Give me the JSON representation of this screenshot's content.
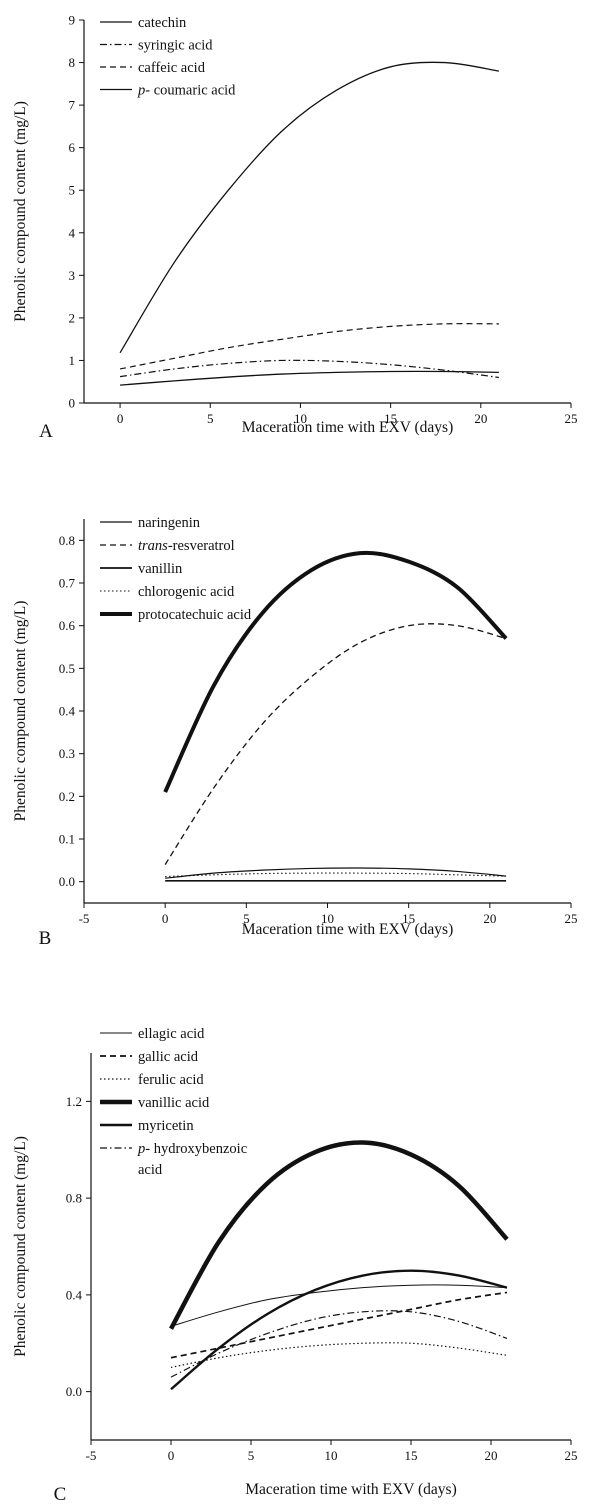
{
  "chart_data": [
    {
      "type": "line",
      "panel_label": "A",
      "xlabel": "Maceration time with EXV (days)",
      "ylabel": "Phenolic compound content (mg/L)",
      "xlim": [
        -2,
        25
      ],
      "ylim": [
        0,
        9
      ],
      "xticks": [
        "0",
        "5",
        "10",
        "15",
        "20",
        "25"
      ],
      "yticks": [
        "0",
        "1",
        "2",
        "3",
        "4",
        "5",
        "6",
        "7",
        "8",
        "9"
      ],
      "legend_position": "top-left",
      "x": [
        0,
        3,
        6,
        9,
        12,
        15,
        18,
        21
      ],
      "series": [
        {
          "name": "catechin",
          "style": "solid",
          "width": 1.3,
          "values": [
            1.18,
            3.3,
            5.0,
            6.4,
            7.35,
            7.9,
            8.0,
            7.8
          ]
        },
        {
          "name": "syringic acid",
          "style": "dashdot",
          "width": 1.2,
          "values": [
            0.62,
            0.8,
            0.93,
            1.0,
            0.98,
            0.9,
            0.77,
            0.6
          ]
        },
        {
          "name": "caffeic acid",
          "style": "dashed",
          "width": 1.2,
          "values": [
            0.8,
            1.05,
            1.3,
            1.5,
            1.68,
            1.8,
            1.86,
            1.86
          ]
        },
        {
          "name": "coumaric acid",
          "name_prefix": "p-",
          "style": "solid",
          "width": 1.3,
          "values": [
            0.42,
            0.52,
            0.61,
            0.68,
            0.72,
            0.74,
            0.74,
            0.72
          ]
        }
      ]
    },
    {
      "type": "line",
      "panel_label": "B",
      "xlabel": "Maceration time with EXV (days)",
      "ylabel": "Phenolic compound content (mg/L)",
      "xlim": [
        -5,
        25
      ],
      "ylim": [
        -0.05,
        0.85
      ],
      "xticks": [
        "-5",
        "0",
        "5",
        "10",
        "15",
        "20",
        "25"
      ],
      "yticks": [
        "0.0",
        "0.1",
        "0.2",
        "0.3",
        "0.4",
        "0.5",
        "0.6",
        "0.7",
        "0.8"
      ],
      "legend_position": "top-left",
      "x": [
        0,
        3,
        6,
        9,
        12,
        15,
        18,
        21
      ],
      "series": [
        {
          "name": "naringenin",
          "style": "solid",
          "width": 1.2,
          "values": [
            0.008,
            0.02,
            0.027,
            0.031,
            0.032,
            0.03,
            0.024,
            0.013
          ]
        },
        {
          "name": "resveratrol",
          "name_prefix": "trans-",
          "style": "dashed",
          "width": 1.3,
          "values": [
            0.04,
            0.22,
            0.37,
            0.48,
            0.56,
            0.6,
            0.6,
            0.57
          ]
        },
        {
          "name": "vanillin",
          "style": "solid",
          "width": 1.7,
          "values": [
            0.002,
            0.002,
            0.002,
            0.002,
            0.002,
            0.002,
            0.002,
            0.002
          ]
        },
        {
          "name": "chlorogenic acid",
          "style": "dotted",
          "width": 1.1,
          "values": [
            0.012,
            0.016,
            0.019,
            0.02,
            0.02,
            0.019,
            0.016,
            0.013
          ]
        },
        {
          "name": "protocatechuic acid",
          "style": "solid",
          "width": 4,
          "values": [
            0.21,
            0.46,
            0.63,
            0.73,
            0.77,
            0.75,
            0.69,
            0.57
          ]
        }
      ]
    },
    {
      "type": "line",
      "panel_label": "C",
      "xlabel": "Maceration time with EXV (days)",
      "ylabel": "Phenolic compound content (mg/L)",
      "xlim": [
        -5,
        25
      ],
      "ylim": [
        -0.2,
        1.4
      ],
      "xticks": [
        "-5",
        "0",
        "5",
        "10",
        "15",
        "20",
        "25"
      ],
      "yticks": [
        "0.0",
        "0.4",
        "0.8",
        "1.2"
      ],
      "legend_position": "top-left",
      "x": [
        0,
        3,
        6,
        9,
        12,
        15,
        18,
        21
      ],
      "series": [
        {
          "name": "ellagic acid",
          "style": "solid",
          "width": 1.0,
          "values": [
            0.27,
            0.33,
            0.38,
            0.41,
            0.43,
            0.44,
            0.44,
            0.43
          ]
        },
        {
          "name": "gallic acid",
          "style": "dashed",
          "width": 1.7,
          "values": [
            0.14,
            0.18,
            0.22,
            0.26,
            0.3,
            0.34,
            0.38,
            0.41
          ]
        },
        {
          "name": "ferulic acid",
          "style": "dotted",
          "width": 1.2,
          "values": [
            0.1,
            0.14,
            0.17,
            0.19,
            0.2,
            0.2,
            0.18,
            0.15
          ]
        },
        {
          "name": "vanillic acid",
          "style": "solid",
          "width": 4.5,
          "values": [
            0.26,
            0.62,
            0.86,
            0.99,
            1.03,
            0.98,
            0.85,
            0.63
          ]
        },
        {
          "name": "myricetin",
          "style": "solid",
          "width": 2.4,
          "values": [
            0.01,
            0.18,
            0.32,
            0.42,
            0.48,
            0.5,
            0.48,
            0.43
          ]
        },
        {
          "name": "hydroxybenzoic acid",
          "name_prefix": "p-",
          "style": "dashdot",
          "width": 1.2,
          "values": [
            0.06,
            0.16,
            0.24,
            0.3,
            0.33,
            0.33,
            0.29,
            0.22
          ]
        }
      ]
    }
  ]
}
